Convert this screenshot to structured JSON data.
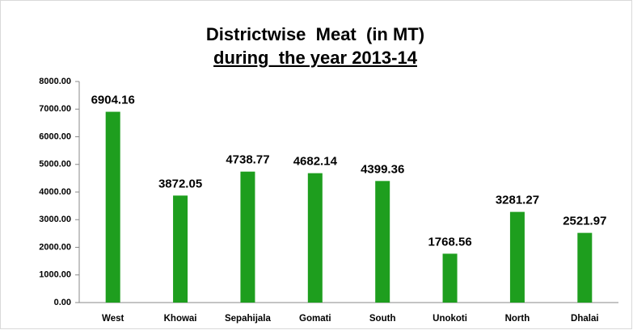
{
  "chart_data": {
    "type": "bar",
    "title": "Districtwise  Meat  (in MT)",
    "subtitle": "during  the year 2013-14",
    "categories": [
      "West",
      "Khowai",
      "Sepahijala",
      "Gomati",
      "South",
      "Unokoti",
      "North",
      "Dhalai"
    ],
    "values": [
      6904.16,
      3872.05,
      4738.77,
      4682.14,
      4399.36,
      1768.56,
      3281.27,
      2521.97
    ],
    "color": "#1e9e1e",
    "ylim": [
      0,
      8000
    ],
    "yticks": [
      {
        "value": 0,
        "label": "0.00"
      },
      {
        "value": 1000,
        "label": "1000.00"
      },
      {
        "value": 2000,
        "label": "2000.00"
      },
      {
        "value": 3000,
        "label": "3000.00"
      },
      {
        "value": 4000,
        "label": "4000.00"
      },
      {
        "value": 5000,
        "label": "5000.00"
      },
      {
        "value": 6000,
        "label": "6000.00"
      },
      {
        "value": 7000,
        "label": "7000.00"
      },
      {
        "value": 8000,
        "label": "8000.00"
      }
    ],
    "grid": false
  }
}
